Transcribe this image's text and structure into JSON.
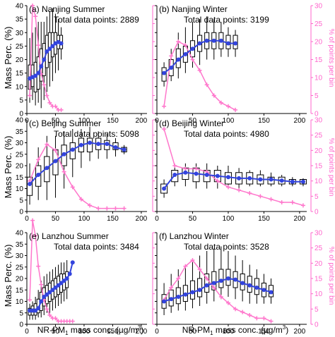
{
  "figure": {
    "ylabel_left": "Mass Perc. (%)",
    "ylabel_right": "% of points per bin",
    "xlabel": "NR-PM",
    "xlabel_sub": "1",
    "xlabel_rest": " mass conc. (µg/m",
    "xlabel_sup": "3",
    "xlabel_end": ")"
  },
  "chart_data": [
    {
      "type": "box",
      "title": "(a) Nanjing Summer",
      "subtitle": "Total data points: 2889",
      "xlim": [
        0,
        210
      ],
      "ylim": [
        0,
        40
      ],
      "y2lim": [
        0,
        30
      ],
      "mean": {
        "x": [
          5,
          10,
          15,
          20,
          25,
          30,
          35,
          40,
          45,
          50,
          55,
          60
        ],
        "y": [
          13,
          13.5,
          14,
          15,
          17.5,
          20,
          23,
          24,
          25,
          26,
          26.5,
          26
        ]
      },
      "freq": {
        "x": [
          5,
          10,
          15,
          20,
          25,
          30,
          35,
          40,
          45,
          50,
          55,
          60
        ],
        "y": [
          5,
          30,
          27,
          19,
          11,
          8,
          5,
          3,
          2,
          2,
          1,
          1
        ]
      },
      "boxes": [
        {
          "x": 5,
          "lo": 4,
          "q1": 9,
          "q3": 18,
          "hi": 28
        },
        {
          "x": 10,
          "lo": 5,
          "q1": 10,
          "q3": 18,
          "hi": 30
        },
        {
          "x": 15,
          "lo": 3,
          "q1": 8,
          "q3": 19,
          "hi": 32
        },
        {
          "x": 20,
          "lo": 4,
          "q1": 9,
          "q3": 21,
          "hi": 34
        },
        {
          "x": 25,
          "lo": 2,
          "q1": 12,
          "q3": 24,
          "hi": 34
        },
        {
          "x": 30,
          "lo": 5,
          "q1": 14,
          "q3": 26,
          "hi": 34
        },
        {
          "x": 35,
          "lo": 8,
          "q1": 17,
          "q3": 29,
          "hi": 36
        },
        {
          "x": 40,
          "lo": 10,
          "q1": 19,
          "q3": 30,
          "hi": 38
        },
        {
          "x": 45,
          "lo": 12,
          "q1": 21,
          "q3": 30,
          "hi": 39
        },
        {
          "x": 50,
          "lo": 15,
          "q1": 22,
          "q3": 30,
          "hi": 37
        },
        {
          "x": 55,
          "lo": 16,
          "q1": 24,
          "q3": 29,
          "hi": 35
        },
        {
          "x": 60,
          "lo": 20,
          "q1": 24,
          "q3": 29,
          "hi": 32
        }
      ]
    },
    {
      "type": "box",
      "title": "(b) Nanjing Winter",
      "subtitle": "Total data points: 3199",
      "xlim": [
        0,
        210
      ],
      "ylim": [
        0,
        40
      ],
      "y2lim": [
        0,
        30
      ],
      "mean": {
        "x": [
          10,
          20,
          30,
          40,
          50,
          60,
          70,
          80,
          90,
          100,
          110
        ],
        "y": [
          15,
          17,
          20,
          22,
          24,
          26,
          27,
          27,
          27,
          26,
          26
        ]
      },
      "freq": {
        "x": [
          10,
          20,
          30,
          40,
          50,
          60,
          70,
          80,
          90,
          100,
          110
        ],
        "y": [
          2,
          16,
          20,
          19,
          15,
          12,
          8,
          5,
          3,
          2,
          1
        ]
      },
      "boxes": [
        {
          "x": 10,
          "lo": 10,
          "q1": 12,
          "q3": 17,
          "hi": 19
        },
        {
          "x": 20,
          "lo": 12,
          "q1": 14,
          "q3": 20,
          "hi": 24
        },
        {
          "x": 30,
          "lo": 13,
          "q1": 17,
          "q3": 24,
          "hi": 30
        },
        {
          "x": 40,
          "lo": 15,
          "q1": 19,
          "q3": 25,
          "hi": 32
        },
        {
          "x": 50,
          "lo": 17,
          "q1": 21,
          "q3": 27,
          "hi": 34
        },
        {
          "x": 60,
          "lo": 18,
          "q1": 23,
          "q3": 29,
          "hi": 35
        },
        {
          "x": 70,
          "lo": 20,
          "q1": 24,
          "q3": 30,
          "hi": 36
        },
        {
          "x": 80,
          "lo": 20,
          "q1": 24,
          "q3": 30,
          "hi": 35
        },
        {
          "x": 90,
          "lo": 21,
          "q1": 24,
          "q3": 30,
          "hi": 34
        },
        {
          "x": 100,
          "lo": 21,
          "q1": 24,
          "q3": 29,
          "hi": 32
        },
        {
          "x": 110,
          "lo": 21,
          "q1": 24,
          "q3": 29,
          "hi": 31
        }
      ]
    },
    {
      "type": "box",
      "title": "(c) Beijing Summer",
      "subtitle": "Total data points: 5098",
      "xlim": [
        0,
        210
      ],
      "ylim": [
        0,
        40
      ],
      "y2lim": [
        0,
        30
      ],
      "mean": {
        "x": [
          5,
          20,
          35,
          50,
          65,
          80,
          95,
          110,
          125,
          140,
          155,
          170
        ],
        "y": [
          12,
          16,
          19,
          22,
          25,
          27,
          29,
          30,
          29.5,
          29.5,
          28,
          27
        ]
      },
      "freq": {
        "x": [
          5,
          20,
          35,
          50,
          65,
          80,
          95,
          110,
          125,
          140,
          155,
          170
        ],
        "y": [
          10,
          17,
          22,
          20,
          13,
          8,
          4,
          2,
          1,
          1,
          1,
          1
        ]
      },
      "boxes": [
        {
          "x": 5,
          "lo": 3,
          "q1": 7,
          "q3": 15,
          "hi": 21
        },
        {
          "x": 20,
          "lo": 5,
          "q1": 11,
          "q3": 20,
          "hi": 28
        },
        {
          "x": 35,
          "lo": 5,
          "q1": 13,
          "q3": 24,
          "hi": 33
        },
        {
          "x": 50,
          "lo": 6,
          "q1": 16,
          "q3": 27,
          "hi": 33
        },
        {
          "x": 65,
          "lo": 10,
          "q1": 20,
          "q3": 29,
          "hi": 35
        },
        {
          "x": 80,
          "lo": 15,
          "q1": 23,
          "q3": 30,
          "hi": 36
        },
        {
          "x": 95,
          "lo": 19,
          "q1": 26,
          "q3": 32,
          "hi": 36
        },
        {
          "x": 110,
          "lo": 22,
          "q1": 26,
          "q3": 32,
          "hi": 37
        },
        {
          "x": 125,
          "lo": 23,
          "q1": 27,
          "q3": 32,
          "hi": 35
        },
        {
          "x": 140,
          "lo": 23,
          "q1": 27,
          "q3": 31,
          "hi": 34
        },
        {
          "x": 155,
          "lo": 24,
          "q1": 27,
          "q3": 30,
          "hi": 32
        },
        {
          "x": 170,
          "lo": 25,
          "q1": 26,
          "q3": 28,
          "hi": 29
        }
      ]
    },
    {
      "type": "box",
      "title": "(d) Beijing Winter",
      "subtitle": "Total data points: 4980",
      "xlim": [
        0,
        210
      ],
      "ylim": [
        0,
        40
      ],
      "y2lim": [
        0,
        30
      ],
      "mean": {
        "x": [
          10,
          25,
          40,
          55,
          70,
          85,
          100,
          115,
          130,
          145,
          160,
          175,
          190,
          205
        ],
        "y": [
          10,
          16,
          17,
          16.5,
          16,
          15.5,
          15,
          14.5,
          14.5,
          14,
          14,
          13.5,
          13,
          13
        ]
      },
      "freq": {
        "x": [
          10,
          25,
          40,
          55,
          70,
          85,
          100,
          115,
          130,
          145,
          160,
          175,
          190,
          205
        ],
        "y": [
          27,
          15,
          14,
          14,
          13,
          10,
          8,
          7,
          6,
          5,
          4,
          3,
          3,
          2
        ]
      },
      "boxes": [
        {
          "x": 10,
          "lo": 6,
          "q1": 8,
          "q3": 12,
          "hi": 14
        },
        {
          "x": 25,
          "lo": 11,
          "q1": 13,
          "q3": 18,
          "hi": 20
        },
        {
          "x": 40,
          "lo": 11,
          "q1": 14,
          "q3": 19,
          "hi": 21
        },
        {
          "x": 55,
          "lo": 10,
          "q1": 13,
          "q3": 19,
          "hi": 21
        },
        {
          "x": 70,
          "lo": 10,
          "q1": 13,
          "q3": 18,
          "hi": 21
        },
        {
          "x": 85,
          "lo": 10,
          "q1": 13,
          "q3": 18,
          "hi": 20
        },
        {
          "x": 100,
          "lo": 10,
          "q1": 12,
          "q3": 17,
          "hi": 20
        },
        {
          "x": 115,
          "lo": 10,
          "q1": 12,
          "q3": 17,
          "hi": 19
        },
        {
          "x": 130,
          "lo": 11,
          "q1": 12,
          "q3": 17,
          "hi": 18
        },
        {
          "x": 145,
          "lo": 11,
          "q1": 12,
          "q3": 16,
          "hi": 18
        },
        {
          "x": 160,
          "lo": 11,
          "q1": 12,
          "q3": 15,
          "hi": 17
        },
        {
          "x": 175,
          "lo": 11,
          "q1": 12,
          "q3": 15,
          "hi": 16
        },
        {
          "x": 190,
          "lo": 11,
          "q1": 12,
          "q3": 14,
          "hi": 15
        },
        {
          "x": 205,
          "lo": 11,
          "q1": 12,
          "q3": 14,
          "hi": 14.5
        }
      ]
    },
    {
      "type": "box",
      "title": "(e) Lanzhou Summer",
      "subtitle": "Total data points: 3484",
      "xlim": [
        0,
        210
      ],
      "ylim": [
        0,
        40
      ],
      "y2lim": [
        0,
        30
      ],
      "mean": {
        "x": [
          5,
          10,
          15,
          20,
          25,
          30,
          35,
          40,
          45,
          50,
          55,
          60,
          65,
          70,
          75,
          80
        ],
        "y": [
          6,
          6,
          6,
          7,
          10,
          12,
          13,
          14,
          15,
          16,
          17,
          18,
          19,
          20,
          22,
          27
        ]
      },
      "freq": {
        "x": [
          5,
          10,
          15,
          20,
          25,
          30,
          35,
          40,
          45,
          50,
          55,
          60,
          65,
          70,
          75,
          80
        ],
        "y": [
          8,
          34,
          29,
          19,
          13,
          8,
          5,
          3,
          2,
          2,
          1,
          1,
          1,
          1,
          1,
          1
        ]
      },
      "boxes": [
        {
          "x": 5,
          "lo": 2,
          "q1": 4,
          "q3": 7,
          "hi": 9
        },
        {
          "x": 10,
          "lo": 2,
          "q1": 4,
          "q3": 8,
          "hi": 10
        },
        {
          "x": 15,
          "lo": 2,
          "q1": 4,
          "q3": 9,
          "hi": 12
        },
        {
          "x": 20,
          "lo": 3,
          "q1": 5,
          "q3": 11,
          "hi": 15
        },
        {
          "x": 25,
          "lo": 3,
          "q1": 6,
          "q3": 14,
          "hi": 19
        },
        {
          "x": 30,
          "lo": 4,
          "q1": 8,
          "q3": 16,
          "hi": 21
        },
        {
          "x": 35,
          "lo": 5,
          "q1": 9,
          "q3": 17,
          "hi": 22
        },
        {
          "x": 40,
          "lo": 5,
          "q1": 10,
          "q3": 18,
          "hi": 23
        },
        {
          "x": 45,
          "lo": 6,
          "q1": 11,
          "q3": 19,
          "hi": 24
        },
        {
          "x": 50,
          "lo": 7,
          "q1": 12,
          "q3": 20,
          "hi": 25
        },
        {
          "x": 55,
          "lo": 8,
          "q1": 13,
          "q3": 21,
          "hi": 26
        },
        {
          "x": 60,
          "lo": 9,
          "q1": 14,
          "q3": 22,
          "hi": 27
        },
        {
          "x": 65,
          "lo": 10,
          "q1": 15,
          "q3": 22,
          "hi": 27
        },
        {
          "x": 70,
          "lo": 11,
          "q1": 16,
          "q3": 23,
          "hi": 28
        }
      ]
    },
    {
      "type": "box",
      "title": "(f) Lanzhou Winter",
      "subtitle": "Total data points: 3528",
      "xlim": [
        0,
        210
      ],
      "ylim": [
        0,
        40
      ],
      "y2lim": [
        0,
        30
      ],
      "mean": {
        "x": [
          10,
          20,
          30,
          40,
          50,
          60,
          70,
          80,
          90,
          100,
          110,
          120,
          130,
          140,
          150,
          160
        ],
        "y": [
          10,
          11,
          12,
          13,
          14,
          15,
          17,
          18,
          19,
          20,
          19.5,
          18,
          17,
          16,
          15,
          14
        ]
      },
      "freq": {
        "x": [
          10,
          20,
          30,
          40,
          50,
          60,
          70,
          80,
          90,
          100,
          110,
          120,
          130,
          140,
          150,
          160
        ],
        "y": [
          8,
          12,
          15,
          19,
          21,
          18,
          15,
          12,
          9,
          7,
          5,
          4,
          3,
          2,
          2,
          1
        ]
      },
      "boxes": [
        {
          "x": 10,
          "lo": 4,
          "q1": 7,
          "q3": 13,
          "hi": 18
        },
        {
          "x": 20,
          "lo": 5,
          "q1": 8,
          "q3": 15,
          "hi": 22
        },
        {
          "x": 30,
          "lo": 6,
          "q1": 9,
          "q3": 16,
          "hi": 24
        },
        {
          "x": 40,
          "lo": 6,
          "q1": 10,
          "q3": 17,
          "hi": 25
        },
        {
          "x": 50,
          "lo": 7,
          "q1": 11,
          "q3": 19,
          "hi": 28
        },
        {
          "x": 60,
          "lo": 8,
          "q1": 12,
          "q3": 20,
          "hi": 30
        },
        {
          "x": 70,
          "lo": 9,
          "q1": 14,
          "q3": 22,
          "hi": 32
        },
        {
          "x": 80,
          "lo": 10,
          "q1": 15,
          "q3": 23,
          "hi": 33
        },
        {
          "x": 90,
          "lo": 11,
          "q1": 16,
          "q3": 24,
          "hi": 34
        },
        {
          "x": 100,
          "lo": 12,
          "q1": 17,
          "q3": 24,
          "hi": 32
        },
        {
          "x": 110,
          "lo": 11,
          "q1": 16,
          "q3": 23,
          "hi": 30
        },
        {
          "x": 120,
          "lo": 10,
          "q1": 15,
          "q3": 22,
          "hi": 28
        },
        {
          "x": 130,
          "lo": 9,
          "q1": 14,
          "q3": 21,
          "hi": 26
        },
        {
          "x": 140,
          "lo": 9,
          "q1": 13,
          "q3": 20,
          "hi": 24
        },
        {
          "x": 150,
          "lo": 9,
          "q1": 12,
          "q3": 18,
          "hi": 22
        },
        {
          "x": 160,
          "lo": 9,
          "q1": 12,
          "q3": 17,
          "hi": 20
        }
      ]
    }
  ]
}
